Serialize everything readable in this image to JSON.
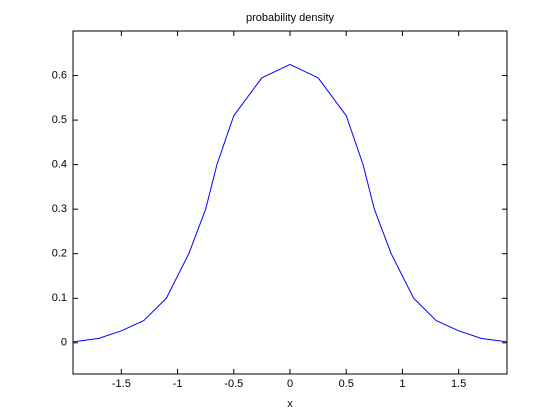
{
  "chart_data": {
    "type": "line",
    "title": "probability density",
    "xlabel": "x",
    "x": [
      -1.93,
      -1.7,
      -1.5,
      -1.3,
      -1.1,
      -0.9,
      -0.75,
      -0.65,
      -0.5,
      -0.25,
      0,
      0.25,
      0.5,
      0.65,
      0.75,
      0.9,
      1.1,
      1.3,
      1.5,
      1.7,
      1.93
    ],
    "series": [
      {
        "color": "#0000ff",
        "values": [
          0.002,
          0.01,
          0.027,
          0.05,
          0.1,
          0.2,
          0.3,
          0.4,
          0.51,
          0.595,
          0.625,
          0.595,
          0.51,
          0.4,
          0.3,
          0.2,
          0.1,
          0.05,
          0.027,
          0.01,
          0.002
        ]
      }
    ],
    "xlim": [
      -1.93,
      1.93
    ],
    "ylim": [
      -0.07,
      0.7
    ],
    "xticks": [
      -1.5,
      -1,
      -0.5,
      0,
      0.5,
      1,
      1.5
    ],
    "yticks": [
      0,
      0.1,
      0.2,
      0.3,
      0.4,
      0.5,
      0.6
    ],
    "grid": false
  }
}
